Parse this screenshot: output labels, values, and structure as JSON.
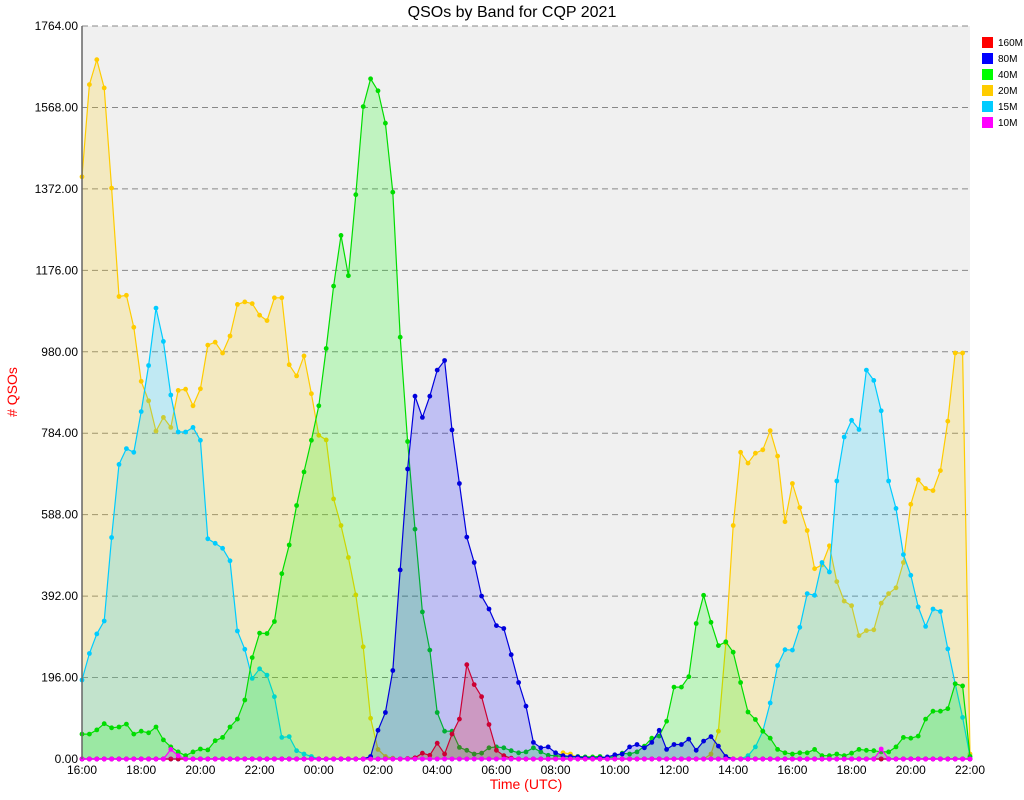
{
  "chart_data": {
    "type": "area",
    "title": "QSOs by Band for CQP 2021",
    "xlabel": "Time (UTC)",
    "ylabel": "# QSOs",
    "ylim": [
      0,
      1764
    ],
    "yticks": [
      "0.00",
      "196.00",
      "392.00",
      "588.00",
      "784.00",
      "980.00",
      "1176.00",
      "1372.00",
      "1568.00",
      "1764.00"
    ],
    "xticks": [
      "16:00",
      "18:00",
      "20:00",
      "22:00",
      "00:00",
      "02:00",
      "04:00",
      "06:00",
      "08:00",
      "10:00",
      "12:00",
      "14:00",
      "16:00",
      "18:00",
      "20:00",
      "22:00"
    ],
    "grid": "horizontal dashed",
    "legend_position": "right",
    "x": [
      "16:00",
      "16:15",
      "16:30",
      "16:45",
      "17:00",
      "17:15",
      "17:30",
      "17:45",
      "18:00",
      "18:15",
      "18:30",
      "18:45",
      "19:00",
      "19:15",
      "19:30",
      "19:45",
      "20:00",
      "20:15",
      "20:30",
      "20:45",
      "21:00",
      "21:15",
      "21:30",
      "21:45",
      "22:00",
      "22:15",
      "22:30",
      "22:45",
      "23:00",
      "23:15",
      "23:30",
      "23:45",
      "00:00",
      "00:15",
      "00:30",
      "00:45",
      "01:00",
      "01:15",
      "01:30",
      "01:45",
      "02:00",
      "02:15",
      "02:30",
      "02:45",
      "03:00",
      "03:15",
      "03:30",
      "03:45",
      "04:00",
      "04:15",
      "04:30",
      "04:45",
      "05:00",
      "05:15",
      "05:30",
      "05:45",
      "06:00",
      "06:15",
      "06:30",
      "06:45",
      "07:00",
      "07:15",
      "07:30",
      "07:45",
      "08:00",
      "08:15",
      "08:30",
      "08:45",
      "09:00",
      "09:15",
      "09:30",
      "09:45",
      "10:00",
      "10:15",
      "10:30",
      "10:45",
      "11:00",
      "11:15",
      "11:30",
      "11:45",
      "12:00",
      "12:15",
      "12:30",
      "12:45",
      "13:00",
      "13:15",
      "13:30",
      "13:45",
      "14:00",
      "14:15",
      "14:30",
      "14:45",
      "15:00",
      "15:15",
      "15:30",
      "15:45",
      "16:00",
      "16:15",
      "16:30",
      "16:45",
      "17:00",
      "17:15",
      "17:30",
      "17:45",
      "18:00",
      "18:15",
      "18:30",
      "18:45",
      "19:00",
      "19:15",
      "19:30",
      "19:45",
      "20:00",
      "20:15",
      "20:30",
      "20:45",
      "21:00",
      "21:15",
      "21:30",
      "21:45",
      "22:00"
    ],
    "series": [
      {
        "name": "160M",
        "color": "#ff0000",
        "line": "#cc0033",
        "values": [
          0,
          0,
          0,
          0,
          0,
          0,
          0,
          0,
          0,
          0,
          0,
          0,
          0,
          0,
          0,
          0,
          0,
          0,
          0,
          0,
          0,
          0,
          0,
          0,
          0,
          0,
          0,
          0,
          0,
          0,
          0,
          0,
          0,
          0,
          0,
          0,
          0,
          0,
          0,
          0,
          0,
          0,
          0,
          0,
          1,
          3,
          14,
          9,
          38,
          12,
          60,
          96,
          227,
          179,
          150,
          83,
          21,
          8,
          2,
          0,
          0,
          0,
          0,
          0,
          0,
          0,
          0,
          0,
          0,
          0,
          0,
          0,
          0,
          0,
          0,
          0,
          0,
          0,
          0,
          0,
          0,
          0,
          0,
          0,
          0,
          0,
          0,
          0,
          0,
          0,
          0,
          0,
          0,
          0,
          0,
          0,
          0,
          0,
          0,
          0,
          0,
          0,
          0,
          0,
          0,
          0,
          0,
          0,
          0,
          0,
          0,
          0,
          0,
          0,
          0,
          0,
          0,
          0,
          0,
          0,
          0
        ]
      },
      {
        "name": "80M",
        "color": "#0000ff",
        "line": "#0000dd",
        "values": [
          0,
          0,
          0,
          0,
          0,
          0,
          0,
          0,
          0,
          0,
          0,
          0,
          0,
          0,
          0,
          0,
          0,
          0,
          0,
          0,
          0,
          0,
          0,
          0,
          0,
          0,
          0,
          0,
          0,
          0,
          0,
          0,
          0,
          0,
          0,
          0,
          0,
          0,
          0,
          6,
          69,
          112,
          213,
          455,
          698,
          873,
          822,
          873,
          936,
          959,
          792,
          663,
          534,
          473,
          392,
          361,
          321,
          314,
          251,
          184,
          127,
          40,
          27,
          29,
          15,
          8,
          6,
          5,
          3,
          2,
          3,
          5,
          10,
          12,
          29,
          35,
          27,
          40,
          69,
          23,
          35,
          35,
          48,
          21,
          43,
          54,
          31,
          6,
          0,
          0,
          0,
          0,
          0,
          0,
          0,
          0,
          0,
          0,
          0,
          0,
          0,
          0,
          0,
          0,
          0,
          0,
          0,
          0,
          0,
          0,
          0,
          0,
          0,
          0,
          0,
          0,
          0,
          0,
          0,
          0,
          0
        ]
      },
      {
        "name": "40M",
        "color": "#00ff00",
        "line": "#00dd00",
        "values": [
          60,
          60,
          70,
          85,
          75,
          77,
          84,
          60,
          67,
          63,
          77,
          46,
          29,
          17,
          8,
          17,
          24,
          22,
          44,
          52,
          77,
          96,
          142,
          244,
          303,
          302,
          331,
          446,
          515,
          610,
          691,
          767,
          850,
          988,
          1138,
          1260,
          1163,
          1358,
          1570,
          1637,
          1608,
          1530,
          1364,
          1015,
          764,
          553,
          354,
          262,
          112,
          67,
          67,
          28,
          21,
          12,
          14,
          27,
          29,
          27,
          20,
          15,
          17,
          27,
          17,
          9,
          8,
          6,
          5,
          6,
          5,
          5,
          6,
          3,
          6,
          14,
          12,
          17,
          31,
          50,
          55,
          91,
          173,
          173,
          198,
          326,
          394,
          329,
          273,
          282,
          257,
          184,
          113,
          95,
          67,
          50,
          23,
          15,
          12,
          15,
          15,
          23,
          8,
          8,
          12,
          8,
          14,
          23,
          21,
          20,
          17,
          17,
          29,
          52,
          50,
          55,
          96,
          115,
          115,
          121,
          181,
          176,
          6
        ]
      },
      {
        "name": "20M",
        "color": "#ffcc00",
        "line": "#ffcc00",
        "values": [
          1401,
          1623,
          1683,
          1615,
          1374,
          1113,
          1116,
          1039,
          909,
          862,
          789,
          822,
          798,
          887,
          890,
          850,
          891,
          996,
          1003,
          977,
          1018,
          1094,
          1100,
          1096,
          1068,
          1055,
          1110,
          1110,
          949,
          922,
          970,
          879,
          779,
          768,
          626,
          562,
          485,
          395,
          270,
          98,
          23,
          6,
          2,
          0,
          0,
          0,
          0,
          0,
          0,
          0,
          0,
          0,
          0,
          0,
          0,
          0,
          0,
          0,
          0,
          0,
          0,
          0,
          0,
          0,
          3,
          15,
          12,
          3,
          0,
          0,
          0,
          0,
          0,
          0,
          0,
          0,
          0,
          0,
          0,
          0,
          0,
          0,
          0,
          0,
          0,
          12,
          67,
          279,
          562,
          738,
          712,
          736,
          744,
          790,
          729,
          571,
          663,
          605,
          550,
          458,
          467,
          513,
          427,
          380,
          369,
          297,
          309,
          311,
          375,
          398,
          412,
          473,
          613,
          672,
          651,
          646,
          694,
          813,
          977,
          977,
          12
        ]
      },
      {
        "name": "15M",
        "color": "#00ccff",
        "line": "#00ccff",
        "values": [
          190,
          254,
          301,
          332,
          533,
          709,
          747,
          738,
          836,
          947,
          1085,
          1005,
          876,
          787,
          787,
          798,
          767,
          530,
          519,
          507,
          477,
          308,
          264,
          194,
          217,
          202,
          150,
          52,
          54,
          20,
          12,
          6,
          0,
          0,
          0,
          0,
          0,
          0,
          0,
          0,
          0,
          0,
          0,
          0,
          0,
          0,
          0,
          0,
          0,
          0,
          0,
          0,
          0,
          0,
          0,
          0,
          0,
          0,
          0,
          0,
          0,
          0,
          0,
          0,
          0,
          0,
          0,
          0,
          0,
          0,
          0,
          0,
          0,
          0,
          0,
          0,
          0,
          0,
          0,
          0,
          0,
          0,
          0,
          0,
          0,
          0,
          0,
          0,
          0,
          0,
          8,
          29,
          67,
          135,
          225,
          263,
          262,
          317,
          398,
          394,
          473,
          450,
          669,
          775,
          815,
          793,
          936,
          911,
          838,
          669,
          603,
          492,
          442,
          366,
          319,
          361,
          355,
          265,
          181,
          100,
          6
        ]
      },
      {
        "name": "10M",
        "color": "#ff00ff",
        "line": "#ff00ff",
        "values": [
          0,
          0,
          0,
          0,
          0,
          0,
          0,
          0,
          0,
          0,
          0,
          0,
          23,
          8,
          0,
          0,
          0,
          0,
          0,
          0,
          0,
          0,
          0,
          0,
          0,
          0,
          0,
          0,
          0,
          0,
          0,
          0,
          0,
          0,
          0,
          0,
          0,
          0,
          0,
          0,
          0,
          0,
          0,
          0,
          0,
          0,
          0,
          0,
          0,
          0,
          0,
          0,
          0,
          0,
          0,
          0,
          0,
          0,
          0,
          0,
          0,
          0,
          0,
          0,
          0,
          0,
          0,
          0,
          0,
          0,
          0,
          0,
          0,
          0,
          0,
          0,
          0,
          0,
          0,
          0,
          0,
          0,
          0,
          0,
          0,
          0,
          0,
          0,
          0,
          0,
          0,
          0,
          0,
          0,
          0,
          0,
          0,
          0,
          0,
          0,
          0,
          0,
          0,
          0,
          0,
          0,
          0,
          0,
          24,
          0,
          0,
          0,
          0,
          0,
          0,
          0,
          0,
          0,
          0,
          0,
          0
        ]
      }
    ]
  }
}
